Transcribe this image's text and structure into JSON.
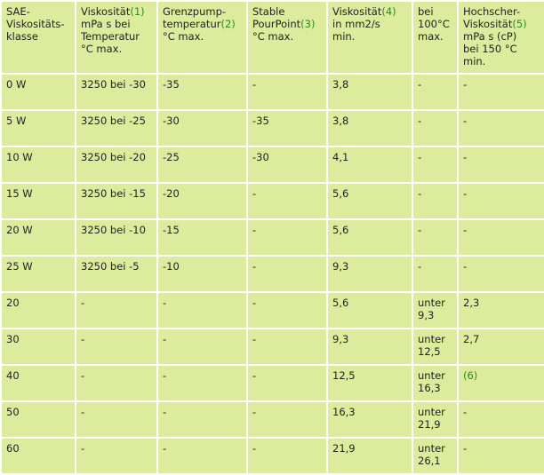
{
  "headers": [
    {
      "lines": [
        "SAE-",
        "Viskositäts-",
        "klasse"
      ]
    },
    {
      "lines": [
        "Viskosität",
        "mPa s bei",
        "Temperatur",
        "°C max."
      ],
      "ref": "(1)"
    },
    {
      "lines": [
        "Grenzpump-",
        "temperatur",
        "°C max."
      ],
      "ref": "(2)",
      "ref_line": 1
    },
    {
      "lines": [
        "Stable",
        "PourPoint",
        "°C max."
      ],
      "ref": "(3)",
      "ref_line": 1
    },
    {
      "lines": [
        "Viskosität",
        "in mm2/s",
        "min."
      ],
      "ref": "(4)"
    },
    {
      "lines": [
        "bei",
        "100°C",
        "max."
      ]
    },
    {
      "lines": [
        "Hochscher-",
        "Viskosität",
        "mPa s (cP)",
        "bei 150 °C",
        "min."
      ],
      "ref": "(5)",
      "ref_line": 1
    }
  ],
  "rows": [
    [
      "0 W",
      "3250 bei -30",
      "-35",
      "-",
      "3,8",
      "-",
      "-"
    ],
    [
      "5 W",
      "3250 bei -25",
      "-30",
      "-35",
      "3,8",
      "-",
      "-"
    ],
    [
      "10 W",
      "3250 bei -20",
      "-25",
      "-30",
      "4,1",
      "-",
      "-"
    ],
    [
      "15 W",
      "3250 bei -15",
      "-20",
      "-",
      "5,6",
      "-",
      "-"
    ],
    [
      "20 W",
      "3250 bei -10",
      "-15",
      "-",
      "5,6",
      "-",
      "-"
    ],
    [
      "25 W",
      "3250 bei -5",
      "-10",
      "-",
      "9,3",
      "-",
      "-"
    ],
    [
      "20",
      "-",
      "-",
      "-",
      "5,6",
      "unter 9,3",
      "2,3"
    ],
    [
      "30",
      "-",
      "-",
      "-",
      "9,3",
      "unter 12,5",
      "2,7"
    ],
    [
      "40",
      "-",
      "-",
      "-",
      "12,5",
      "unter 16,3",
      "(6)"
    ],
    [
      "50",
      "-",
      "-",
      "-",
      "16,3",
      "unter 21,9",
      "-"
    ],
    [
      "60",
      "-",
      "-",
      "-",
      "21,9",
      "unter 26,1",
      "-"
    ]
  ],
  "ref_cells": [
    "(6)"
  ],
  "colors": {
    "background": "#cfe28a",
    "cell": "#dcec9c",
    "border": "#ffffff",
    "reference": "#2e8b1f"
  }
}
